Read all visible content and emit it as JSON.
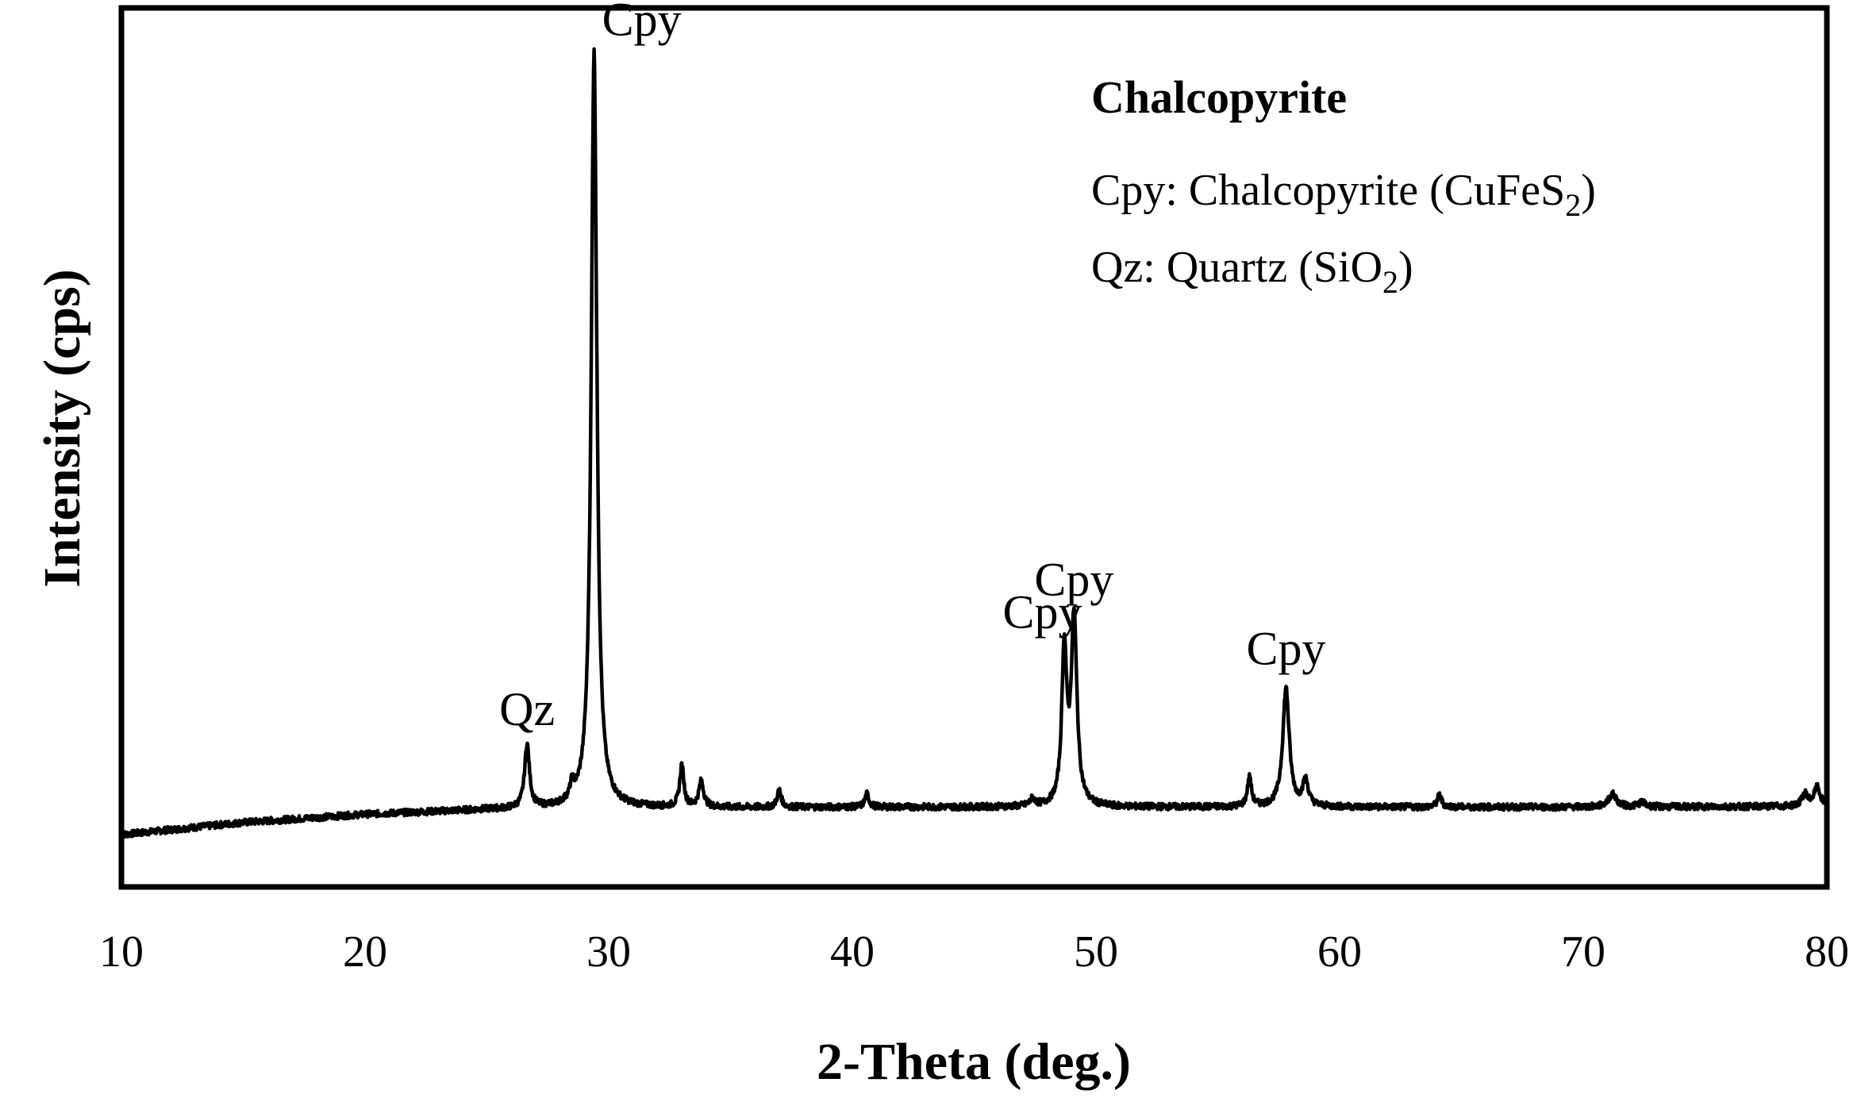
{
  "chart_data": {
    "type": "line",
    "xlabel": "2-Theta (deg.)",
    "ylabel": "Intensity (cps)",
    "xlim": [
      10,
      80
    ],
    "ylim": [
      0,
      100
    ],
    "x_ticks": [
      "10",
      "20",
      "30",
      "40",
      "50",
      "60",
      "70",
      "80"
    ],
    "y_tick_labels_shown": false,
    "grid": false,
    "series": [
      {
        "baseline": [
          [
            10,
            3.5
          ],
          [
            15,
            5.0
          ],
          [
            20,
            6.0
          ],
          [
            25,
            6.6
          ],
          [
            30,
            6.8
          ],
          [
            40,
            6.9
          ],
          [
            50,
            6.9
          ],
          [
            60,
            6.9
          ],
          [
            70,
            6.9
          ],
          [
            80,
            7.0
          ]
        ],
        "peaks": [
          {
            "x": 26.65,
            "height": 14.5,
            "width": 0.12
          },
          {
            "x": 28.5,
            "height": 8.5,
            "width": 0.1
          },
          {
            "x": 29.4,
            "height": 100.0,
            "width": 0.14
          },
          {
            "x": 33.0,
            "height": 12.0,
            "width": 0.1
          },
          {
            "x": 33.8,
            "height": 10.0,
            "width": 0.12
          },
          {
            "x": 37.0,
            "height": 9.0,
            "width": 0.1
          },
          {
            "x": 40.6,
            "height": 8.5,
            "width": 0.1
          },
          {
            "x": 47.4,
            "height": 7.8,
            "width": 0.12
          },
          {
            "x": 48.7,
            "height": 26.0,
            "width": 0.12
          },
          {
            "x": 49.1,
            "height": 30.0,
            "width": 0.14
          },
          {
            "x": 56.3,
            "height": 10.5,
            "width": 0.1
          },
          {
            "x": 57.8,
            "height": 21.5,
            "width": 0.16
          },
          {
            "x": 58.6,
            "height": 10.0,
            "width": 0.14
          },
          {
            "x": 64.1,
            "height": 8.4,
            "width": 0.1
          },
          {
            "x": 71.2,
            "height": 8.5,
            "width": 0.2
          },
          {
            "x": 72.4,
            "height": 7.5,
            "width": 0.15
          },
          {
            "x": 79.1,
            "height": 8.5,
            "width": 0.15
          },
          {
            "x": 79.6,
            "height": 9.3,
            "width": 0.15
          }
        ]
      }
    ],
    "peak_labels": [
      {
        "text": "Qz",
        "x": 26.65,
        "y": 17
      },
      {
        "text": "Cpy",
        "x": 29.4,
        "y": 102
      },
      {
        "text": "Cpy",
        "x": 47.8,
        "y": 29
      },
      {
        "text": "Cpy",
        "x": 49.1,
        "y": 33
      },
      {
        "text": "Cpy",
        "x": 57.8,
        "y": 24.5
      }
    ],
    "legend": {
      "placement": "top-right",
      "title": "Chalcopyrite",
      "entries": [
        {
          "prefix": "Cpy: Chalcopyrite (CuFeS",
          "subscript": "2",
          "suffix": ")"
        },
        {
          "prefix": "Qz: Quartz (SiO",
          "subscript": "2",
          "suffix": ")"
        }
      ]
    },
    "line_color": "#000000"
  }
}
